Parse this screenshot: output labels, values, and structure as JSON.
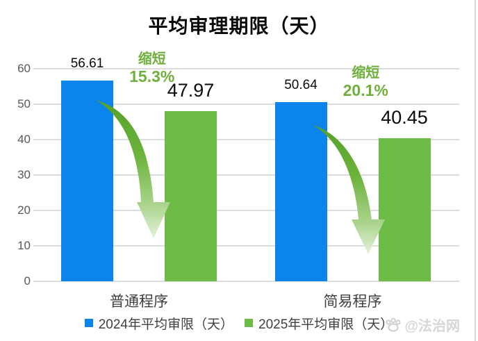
{
  "title": "平均审理期限（天）",
  "watermark": {
    "icon": "paw-icon",
    "text": "@法治网"
  },
  "legend": {
    "items": [
      {
        "label": "2024年平均审限（天）",
        "color": "#0b84ec"
      },
      {
        "label": "2025年平均审限（天）",
        "color": "#6dbc45"
      }
    ]
  },
  "chart_data": {
    "type": "bar",
    "title": "平均审理期限（天）",
    "categories": [
      "普通程序",
      "简易程序"
    ],
    "series": [
      {
        "name": "2024年平均审限（天）",
        "color": "#0b84ec",
        "values": [
          56.61,
          50.64
        ]
      },
      {
        "name": "2025年平均审限（天）",
        "color": "#6dbc45",
        "values": [
          47.97,
          40.45
        ]
      }
    ],
    "annotations": [
      {
        "category": "普通程序",
        "action": "缩短",
        "percent": "15.3%"
      },
      {
        "category": "简易程序",
        "action": "缩短",
        "percent": "20.1%"
      }
    ],
    "ylim": [
      0,
      60
    ],
    "yticks": [
      0,
      10,
      20,
      30,
      40,
      50,
      60
    ],
    "grid": "horizontal",
    "legend_position": "bottom",
    "value_labels": true,
    "colors": {
      "gridline": "#dcdcdc",
      "axis_tick_text": "#595959",
      "category_text": "#3f3f3f",
      "annotation_text": "#6fb03c",
      "value_text": "#0a0a0a",
      "arrow_start": "#55a02a",
      "arrow_end": "#e3f2da",
      "watermark_text": "#d6d6d6"
    }
  }
}
